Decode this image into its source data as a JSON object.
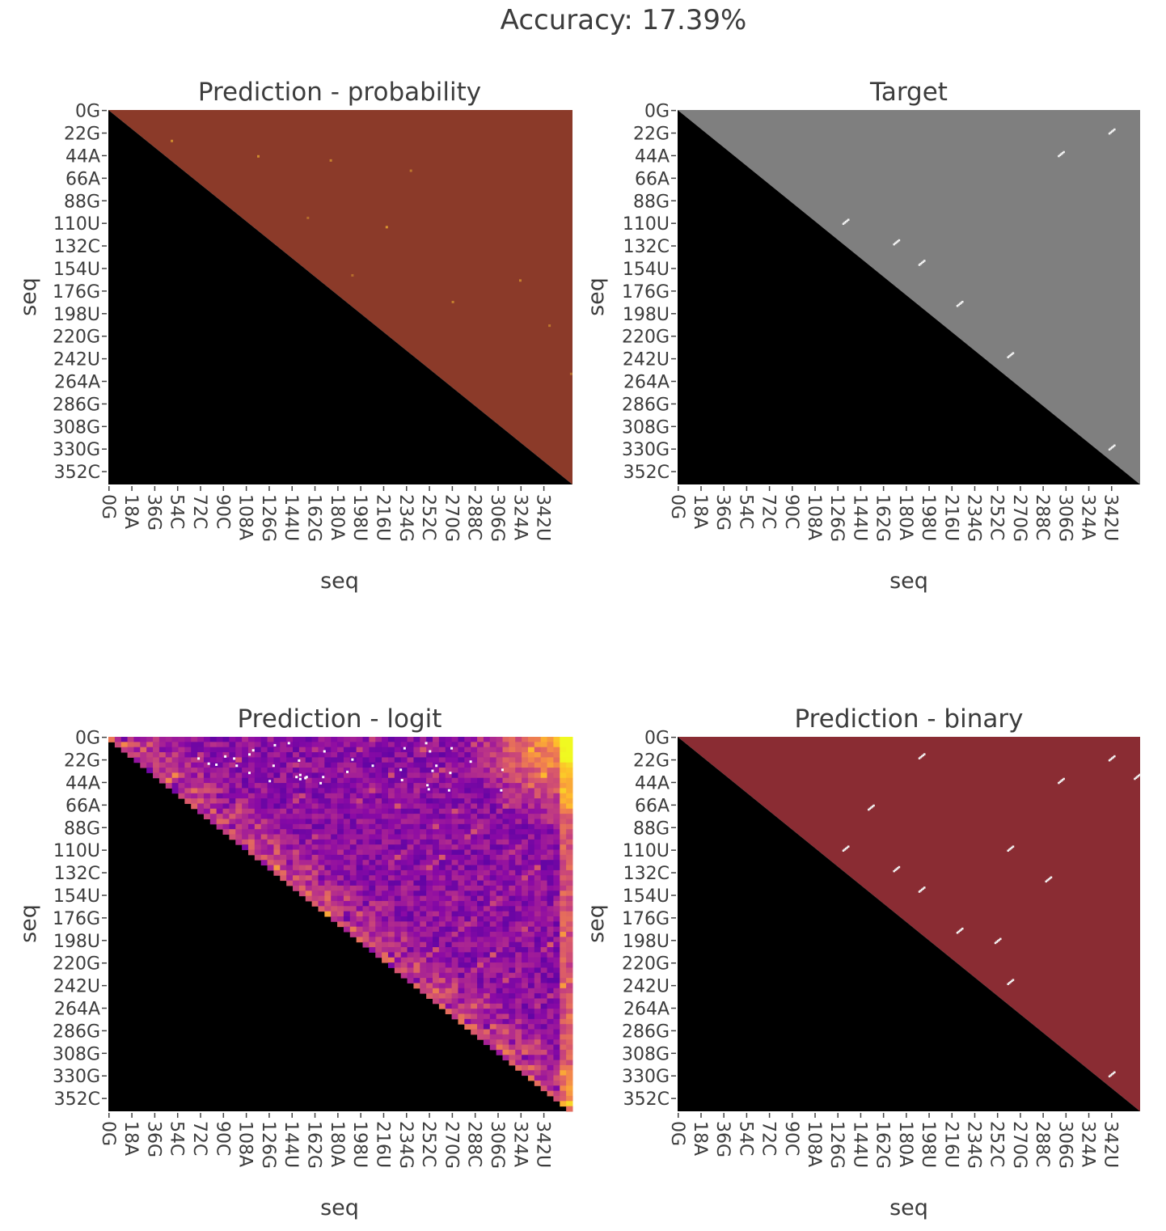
{
  "title": "Accuracy: 17.39%",
  "chart_data": [
    {
      "type": "heatmap",
      "title": "Prediction - probability",
      "xlabel": "seq",
      "ylabel": "seq",
      "colormap": "reds-dark",
      "sequence_length": 365,
      "masked_region": "lower-triangle (black)",
      "background_color": "#8b3a29",
      "x_tick_labels": [
        "0G",
        "18A",
        "36G",
        "54C",
        "72C",
        "90C",
        "108A",
        "126G",
        "144U",
        "162G",
        "180A",
        "198U",
        "216U",
        "234G",
        "252C",
        "270G",
        "288C",
        "306G",
        "324A",
        "342U"
      ],
      "y_tick_labels": [
        "0G",
        "22G",
        "44A",
        "66A",
        "88G",
        "110U",
        "132C",
        "154U",
        "176G",
        "198U",
        "220G",
        "242U",
        "264A",
        "286G",
        "308G",
        "330G",
        "352C"
      ],
      "highlights": [
        [
          29,
          0.8
        ],
        [
          44,
          0.8
        ],
        [
          48,
          0.7
        ],
        [
          58,
          0.6
        ],
        [
          104,
          0.5
        ],
        [
          113,
          0.9
        ],
        [
          165,
          0.7
        ],
        [
          160,
          0.5
        ],
        [
          186,
          0.7
        ],
        [
          209,
          0.6
        ],
        [
          256,
          0.5
        ]
      ]
    },
    {
      "type": "heatmap",
      "title": "Target",
      "xlabel": "seq",
      "ylabel": "seq",
      "colormap": "grays",
      "sequence_length": 365,
      "masked_region": "lower-triangle (black)",
      "background_color": "#7f7f7f",
      "x_tick_labels": [
        "0G",
        "18A",
        "36G",
        "54C",
        "72C",
        "90C",
        "108A",
        "126G",
        "144U",
        "162G",
        "180A",
        "198U",
        "216U",
        "234G",
        "252C",
        "270G",
        "288C",
        "306G",
        "324A",
        "342U"
      ],
      "y_tick_labels": [
        "0G",
        "22G",
        "44A",
        "66A",
        "88G",
        "110U",
        "132C",
        "154U",
        "176G",
        "198U",
        "220G",
        "242U",
        "264A",
        "286G",
        "308G",
        "330G",
        "352C"
      ]
    },
    {
      "type": "heatmap",
      "title": "Prediction - logit",
      "xlabel": "seq",
      "ylabel": "seq",
      "colormap": "plasma",
      "sequence_length": 365,
      "masked_region": "lower-triangle (black)",
      "x_tick_labels": [
        "0G",
        "18A",
        "36G",
        "54C",
        "72C",
        "90C",
        "108A",
        "126G",
        "144U",
        "162G",
        "180A",
        "198U",
        "216U",
        "234G",
        "252C",
        "270G",
        "288C",
        "306G",
        "324A",
        "342U"
      ],
      "y_tick_labels": [
        "0G",
        "22G",
        "44A",
        "66A",
        "88G",
        "110U",
        "132C",
        "154U",
        "176G",
        "198U",
        "220G",
        "242U",
        "264A",
        "286G",
        "308G",
        "330G",
        "352C"
      ]
    },
    {
      "type": "heatmap",
      "title": "Prediction - binary",
      "xlabel": "seq",
      "ylabel": "seq",
      "colormap": "binary-red",
      "sequence_length": 365,
      "masked_region": "lower-triangle (black)",
      "background_color": "#8a2c33",
      "x_tick_labels": [
        "0G",
        "18A",
        "36G",
        "54C",
        "72C",
        "90C",
        "108A",
        "126G",
        "144U",
        "162G",
        "180A",
        "198U",
        "216U",
        "234G",
        "252C",
        "270G",
        "288C",
        "306G",
        "324A",
        "342U"
      ],
      "y_tick_labels": [
        "0G",
        "22G",
        "44A",
        "66A",
        "88G",
        "110U",
        "132C",
        "154U",
        "176G",
        "198U",
        "220G",
        "242U",
        "264A",
        "286G",
        "308G",
        "330G",
        "352C"
      ]
    }
  ]
}
